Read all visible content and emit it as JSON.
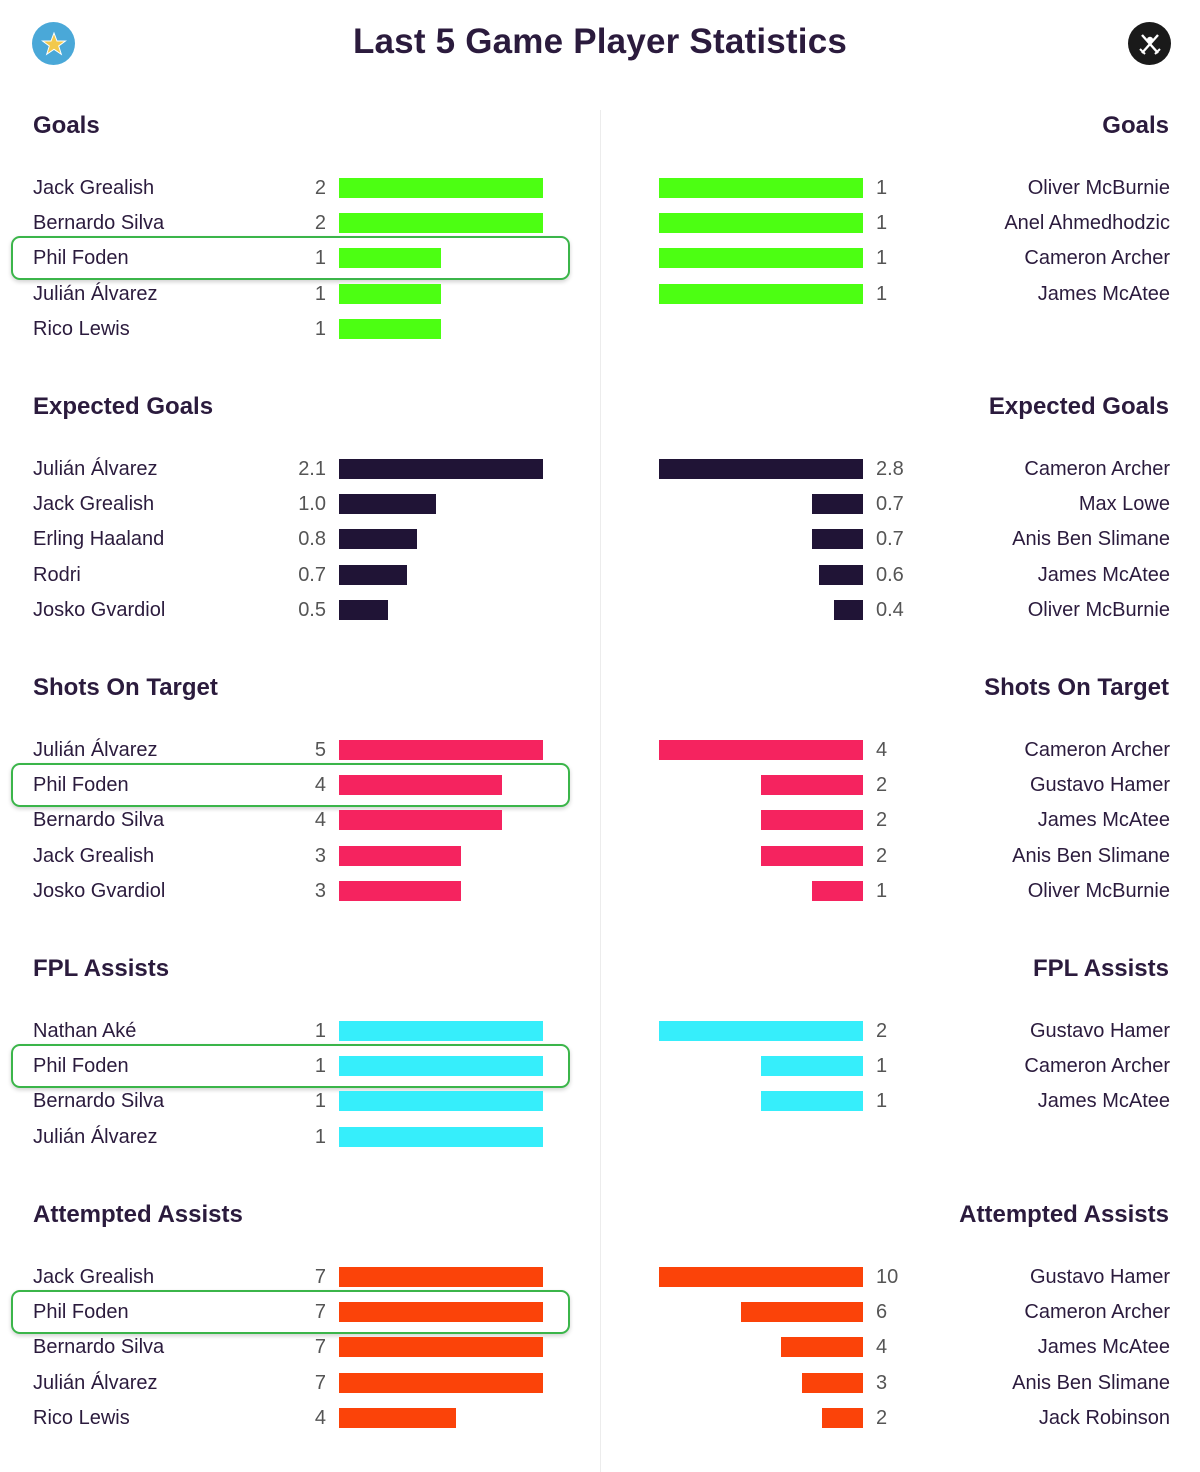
{
  "title": "Last 5 Game Player Statistics",
  "icons": {
    "left_badge": "star-crest-icon",
    "right_badge": "swords-crest-icon"
  },
  "colors": {
    "goals": "#4cff12",
    "expected_goals": "#201436",
    "shots_on_target": "#f5235f",
    "fpl_assists": "#36eefb",
    "attempted_assists": "#fb4309",
    "highlight": "#3bb54a"
  },
  "highlighted_player": "Phil Foden",
  "chart_data": [
    {
      "type": "bar",
      "stat": "goals",
      "side": "left",
      "title": "Goals",
      "xlim": [
        0,
        2
      ],
      "rows": [
        {
          "name": "Jack Grealish",
          "value": 2,
          "label": "2"
        },
        {
          "name": "Bernardo Silva",
          "value": 2,
          "label": "2"
        },
        {
          "name": "Phil Foden",
          "value": 1,
          "label": "1"
        },
        {
          "name": "Julián Álvarez",
          "value": 1,
          "label": "1"
        },
        {
          "name": "Rico Lewis",
          "value": 1,
          "label": "1"
        }
      ]
    },
    {
      "type": "bar",
      "stat": "goals",
      "side": "right",
      "title": "Goals",
      "xlim": [
        0,
        1
      ],
      "rows": [
        {
          "name": "Oliver McBurnie",
          "value": 1,
          "label": "1"
        },
        {
          "name": "Anel Ahmedhodzic",
          "value": 1,
          "label": "1"
        },
        {
          "name": "Cameron Archer",
          "value": 1,
          "label": "1"
        },
        {
          "name": "James McAtee",
          "value": 1,
          "label": "1"
        }
      ]
    },
    {
      "type": "bar",
      "stat": "expected_goals",
      "side": "left",
      "title": "Expected Goals",
      "xlim": [
        0,
        2.1
      ],
      "rows": [
        {
          "name": "Julián Álvarez",
          "value": 2.1,
          "label": "2.1"
        },
        {
          "name": "Jack Grealish",
          "value": 1.0,
          "label": "1.0"
        },
        {
          "name": "Erling Haaland",
          "value": 0.8,
          "label": "0.8"
        },
        {
          "name": "Rodri",
          "value": 0.7,
          "label": "0.7"
        },
        {
          "name": "Josko Gvardiol",
          "value": 0.5,
          "label": "0.5"
        }
      ]
    },
    {
      "type": "bar",
      "stat": "expected_goals",
      "side": "right",
      "title": "Expected Goals",
      "xlim": [
        0,
        2.8
      ],
      "rows": [
        {
          "name": "Cameron Archer",
          "value": 2.8,
          "label": "2.8"
        },
        {
          "name": "Max Lowe",
          "value": 0.7,
          "label": "0.7"
        },
        {
          "name": "Anis Ben Slimane",
          "value": 0.7,
          "label": "0.7"
        },
        {
          "name": "James McAtee",
          "value": 0.6,
          "label": "0.6"
        },
        {
          "name": "Oliver McBurnie",
          "value": 0.4,
          "label": "0.4"
        }
      ]
    },
    {
      "type": "bar",
      "stat": "shots_on_target",
      "side": "left",
      "title": "Shots On Target",
      "xlim": [
        0,
        5
      ],
      "rows": [
        {
          "name": "Julián Álvarez",
          "value": 5,
          "label": "5"
        },
        {
          "name": "Phil Foden",
          "value": 4,
          "label": "4"
        },
        {
          "name": "Bernardo Silva",
          "value": 4,
          "label": "4"
        },
        {
          "name": "Jack Grealish",
          "value": 3,
          "label": "3"
        },
        {
          "name": "Josko Gvardiol",
          "value": 3,
          "label": "3"
        }
      ]
    },
    {
      "type": "bar",
      "stat": "shots_on_target",
      "side": "right",
      "title": "Shots On Target",
      "xlim": [
        0,
        4
      ],
      "rows": [
        {
          "name": "Cameron Archer",
          "value": 4,
          "label": "4"
        },
        {
          "name": "Gustavo Hamer",
          "value": 2,
          "label": "2"
        },
        {
          "name": "James McAtee",
          "value": 2,
          "label": "2"
        },
        {
          "name": "Anis Ben Slimane",
          "value": 2,
          "label": "2"
        },
        {
          "name": "Oliver McBurnie",
          "value": 1,
          "label": "1"
        }
      ]
    },
    {
      "type": "bar",
      "stat": "fpl_assists",
      "side": "left",
      "title": "FPL Assists",
      "xlim": [
        0,
        1
      ],
      "rows": [
        {
          "name": "Nathan Aké",
          "value": 1,
          "label": "1"
        },
        {
          "name": "Phil Foden",
          "value": 1,
          "label": "1"
        },
        {
          "name": "Bernardo Silva",
          "value": 1,
          "label": "1"
        },
        {
          "name": "Julián Álvarez",
          "value": 1,
          "label": "1"
        }
      ]
    },
    {
      "type": "bar",
      "stat": "fpl_assists",
      "side": "right",
      "title": "FPL Assists",
      "xlim": [
        0,
        2
      ],
      "rows": [
        {
          "name": "Gustavo Hamer",
          "value": 2,
          "label": "2"
        },
        {
          "name": "Cameron Archer",
          "value": 1,
          "label": "1"
        },
        {
          "name": "James McAtee",
          "value": 1,
          "label": "1"
        }
      ]
    },
    {
      "type": "bar",
      "stat": "attempted_assists",
      "side": "left",
      "title": "Attempted Assists",
      "xlim": [
        0,
        7
      ],
      "rows": [
        {
          "name": "Jack Grealish",
          "value": 7,
          "label": "7"
        },
        {
          "name": "Phil Foden",
          "value": 7,
          "label": "7"
        },
        {
          "name": "Bernardo Silva",
          "value": 7,
          "label": "7"
        },
        {
          "name": "Julián Álvarez",
          "value": 7,
          "label": "7"
        },
        {
          "name": "Rico Lewis",
          "value": 4,
          "label": "4"
        }
      ]
    },
    {
      "type": "bar",
      "stat": "attempted_assists",
      "side": "right",
      "title": "Attempted Assists",
      "xlim": [
        0,
        10
      ],
      "rows": [
        {
          "name": "Gustavo Hamer",
          "value": 10,
          "label": "10"
        },
        {
          "name": "Cameron Archer",
          "value": 6,
          "label": "6"
        },
        {
          "name": "James McAtee",
          "value": 4,
          "label": "4"
        },
        {
          "name": "Anis Ben Slimane",
          "value": 3,
          "label": "3"
        },
        {
          "name": "Jack Robinson",
          "value": 2,
          "label": "2"
        }
      ]
    }
  ]
}
